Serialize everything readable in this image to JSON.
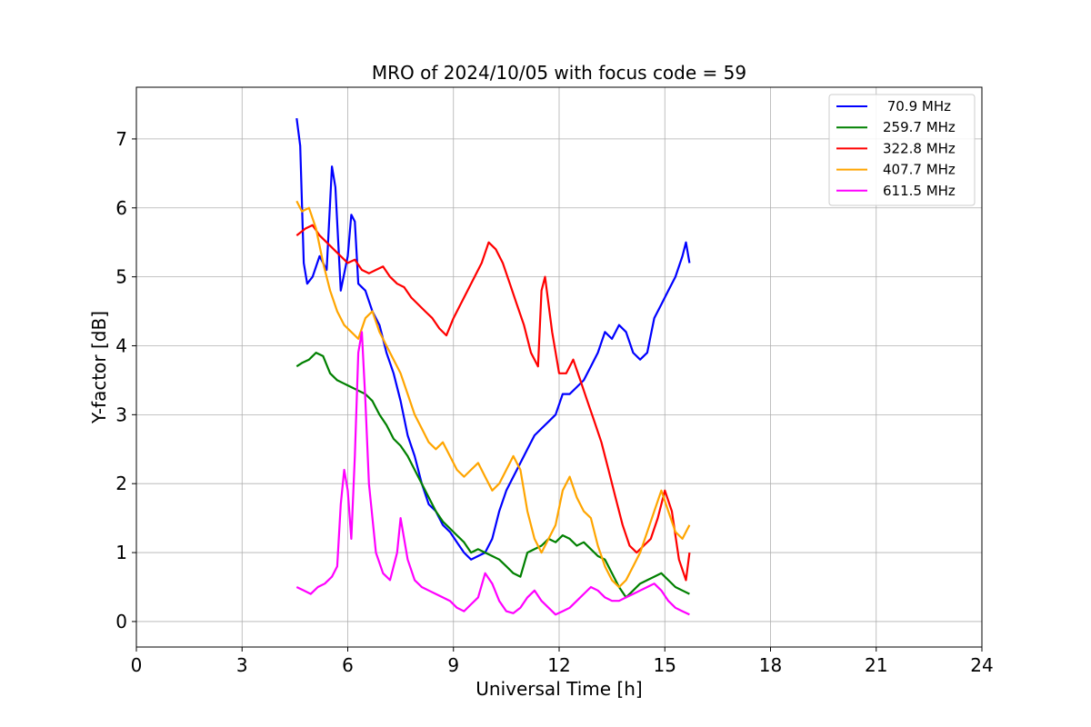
{
  "chart_data": {
    "type": "line",
    "title": "MRO of 2024/10/05 with focus code = 59",
    "xlabel": "Universal Time [h]",
    "ylabel": "Y-factor [dB]",
    "xlim": [
      0,
      24
    ],
    "ylim": [
      -0.37,
      7.75
    ],
    "xticks": [
      0,
      3,
      6,
      9,
      12,
      15,
      18,
      21,
      24
    ],
    "yticks": [
      0,
      1,
      2,
      3,
      4,
      5,
      6,
      7
    ],
    "grid": true,
    "legend_position": "top-right",
    "series": [
      {
        "name": " 70.9 MHz",
        "color": "#0000ff",
        "x": [
          4.55,
          4.65,
          4.75,
          4.85,
          5.0,
          5.2,
          5.4,
          5.55,
          5.65,
          5.8,
          6.0,
          6.1,
          6.2,
          6.3,
          6.5,
          6.7,
          6.9,
          7.1,
          7.3,
          7.5,
          7.7,
          7.9,
          8.1,
          8.3,
          8.5,
          8.7,
          8.9,
          9.1,
          9.3,
          9.5,
          9.7,
          9.9,
          10.1,
          10.3,
          10.5,
          10.7,
          10.9,
          11.1,
          11.3,
          11.5,
          11.7,
          11.9,
          12.1,
          12.3,
          12.5,
          12.7,
          12.9,
          13.1,
          13.3,
          13.5,
          13.7,
          13.9,
          14.1,
          14.3,
          14.5,
          14.7,
          14.9,
          15.1,
          15.3,
          15.5,
          15.6,
          15.7
        ],
        "y": [
          7.3,
          6.9,
          5.2,
          4.9,
          5.0,
          5.3,
          5.1,
          6.6,
          6.3,
          4.8,
          5.3,
          5.9,
          5.8,
          4.9,
          4.8,
          4.5,
          4.3,
          3.9,
          3.6,
          3.2,
          2.7,
          2.4,
          2.0,
          1.7,
          1.6,
          1.4,
          1.3,
          1.15,
          1.0,
          0.9,
          0.95,
          1.0,
          1.2,
          1.6,
          1.9,
          2.1,
          2.3,
          2.5,
          2.7,
          2.8,
          2.9,
          3.0,
          3.3,
          3.3,
          3.4,
          3.5,
          3.7,
          3.9,
          4.2,
          4.1,
          4.3,
          4.2,
          3.9,
          3.8,
          3.9,
          4.4,
          4.6,
          4.8,
          5.0,
          5.3,
          5.5,
          5.2
        ]
      },
      {
        "name": "259.7 MHz",
        "color": "#008000",
        "x": [
          4.55,
          4.7,
          4.9,
          5.1,
          5.3,
          5.5,
          5.7,
          5.9,
          6.1,
          6.3,
          6.5,
          6.7,
          6.9,
          7.1,
          7.3,
          7.5,
          7.7,
          7.9,
          8.1,
          8.3,
          8.5,
          8.7,
          8.9,
          9.1,
          9.3,
          9.5,
          9.7,
          9.9,
          10.1,
          10.3,
          10.5,
          10.7,
          10.9,
          11.1,
          11.3,
          11.5,
          11.7,
          11.9,
          12.1,
          12.3,
          12.5,
          12.7,
          12.9,
          13.1,
          13.3,
          13.5,
          13.7,
          13.9,
          14.1,
          14.3,
          14.5,
          14.7,
          14.9,
          15.1,
          15.3,
          15.5,
          15.7
        ],
        "y": [
          3.7,
          3.75,
          3.8,
          3.9,
          3.85,
          3.6,
          3.5,
          3.45,
          3.4,
          3.35,
          3.3,
          3.2,
          3.0,
          2.85,
          2.65,
          2.55,
          2.4,
          2.2,
          2.0,
          1.8,
          1.6,
          1.45,
          1.35,
          1.25,
          1.15,
          1.0,
          1.05,
          1.0,
          0.95,
          0.9,
          0.8,
          0.7,
          0.65,
          1.0,
          1.05,
          1.1,
          1.2,
          1.15,
          1.25,
          1.2,
          1.1,
          1.15,
          1.05,
          0.95,
          0.9,
          0.7,
          0.5,
          0.35,
          0.45,
          0.55,
          0.6,
          0.65,
          0.7,
          0.6,
          0.5,
          0.45,
          0.4
        ]
      },
      {
        "name": "322.8 MHz",
        "color": "#ff0000",
        "x": [
          4.55,
          4.8,
          5.0,
          5.2,
          5.4,
          5.6,
          5.8,
          6.0,
          6.2,
          6.4,
          6.6,
          6.8,
          7.0,
          7.2,
          7.4,
          7.6,
          7.8,
          8.0,
          8.2,
          8.4,
          8.6,
          8.8,
          9.0,
          9.2,
          9.4,
          9.6,
          9.8,
          10.0,
          10.2,
          10.4,
          10.6,
          10.8,
          11.0,
          11.2,
          11.4,
          11.5,
          11.6,
          11.8,
          12.0,
          12.2,
          12.4,
          12.6,
          12.8,
          13.0,
          13.2,
          13.4,
          13.6,
          13.8,
          14.0,
          14.2,
          14.4,
          14.6,
          14.8,
          15.0,
          15.2,
          15.4,
          15.6,
          15.7
        ],
        "y": [
          5.6,
          5.7,
          5.75,
          5.6,
          5.5,
          5.4,
          5.3,
          5.2,
          5.25,
          5.1,
          5.05,
          5.1,
          5.15,
          5.0,
          4.9,
          4.85,
          4.7,
          4.6,
          4.5,
          4.4,
          4.25,
          4.15,
          4.4,
          4.6,
          4.8,
          5.0,
          5.2,
          5.5,
          5.4,
          5.2,
          4.9,
          4.6,
          4.3,
          3.9,
          3.7,
          4.8,
          5.0,
          4.2,
          3.6,
          3.6,
          3.8,
          3.5,
          3.2,
          2.9,
          2.6,
          2.2,
          1.8,
          1.4,
          1.1,
          1.0,
          1.1,
          1.2,
          1.5,
          1.9,
          1.6,
          0.9,
          0.6,
          1.0
        ]
      },
      {
        "name": "407.7 MHz",
        "color": "#ffa500",
        "x": [
          4.55,
          4.7,
          4.9,
          5.1,
          5.3,
          5.5,
          5.7,
          5.9,
          6.1,
          6.3,
          6.5,
          6.7,
          6.9,
          7.1,
          7.3,
          7.5,
          7.7,
          7.9,
          8.1,
          8.3,
          8.5,
          8.7,
          8.9,
          9.1,
          9.3,
          9.5,
          9.7,
          9.9,
          10.1,
          10.3,
          10.5,
          10.7,
          10.9,
          11.1,
          11.3,
          11.5,
          11.7,
          11.9,
          12.1,
          12.3,
          12.5,
          12.7,
          12.9,
          13.1,
          13.3,
          13.5,
          13.7,
          13.9,
          14.1,
          14.3,
          14.5,
          14.7,
          14.9,
          15.1,
          15.3,
          15.5,
          15.7
        ],
        "y": [
          6.1,
          5.95,
          6.0,
          5.7,
          5.2,
          4.8,
          4.5,
          4.3,
          4.2,
          4.1,
          4.4,
          4.5,
          4.2,
          4.0,
          3.8,
          3.6,
          3.3,
          3.0,
          2.8,
          2.6,
          2.5,
          2.6,
          2.4,
          2.2,
          2.1,
          2.2,
          2.3,
          2.1,
          1.9,
          2.0,
          2.2,
          2.4,
          2.2,
          1.6,
          1.2,
          1.0,
          1.2,
          1.4,
          1.9,
          2.1,
          1.8,
          1.6,
          1.5,
          1.1,
          0.8,
          0.6,
          0.5,
          0.6,
          0.8,
          1.0,
          1.3,
          1.6,
          1.9,
          1.6,
          1.3,
          1.2,
          1.4
        ]
      },
      {
        "name": "611.5 MHz",
        "color": "#ff00ff",
        "x": [
          4.55,
          4.75,
          4.95,
          5.15,
          5.35,
          5.55,
          5.7,
          5.8,
          5.9,
          6.0,
          6.1,
          6.2,
          6.3,
          6.4,
          6.5,
          6.6,
          6.8,
          7.0,
          7.2,
          7.4,
          7.5,
          7.7,
          7.9,
          8.1,
          8.3,
          8.5,
          8.7,
          8.9,
          9.1,
          9.3,
          9.5,
          9.7,
          9.9,
          10.1,
          10.3,
          10.5,
          10.7,
          10.9,
          11.1,
          11.3,
          11.5,
          11.7,
          11.9,
          12.1,
          12.3,
          12.5,
          12.7,
          12.9,
          13.1,
          13.3,
          13.5,
          13.7,
          13.9,
          14.1,
          14.3,
          14.5,
          14.7,
          14.9,
          15.1,
          15.3,
          15.5,
          15.7
        ],
        "y": [
          0.5,
          0.45,
          0.4,
          0.5,
          0.55,
          0.65,
          0.8,
          1.7,
          2.2,
          1.9,
          1.2,
          2.4,
          3.9,
          4.2,
          3.2,
          2.0,
          1.0,
          0.7,
          0.6,
          1.0,
          1.5,
          0.9,
          0.6,
          0.5,
          0.45,
          0.4,
          0.35,
          0.3,
          0.2,
          0.15,
          0.25,
          0.35,
          0.7,
          0.55,
          0.3,
          0.15,
          0.12,
          0.2,
          0.35,
          0.45,
          0.3,
          0.2,
          0.1,
          0.15,
          0.2,
          0.3,
          0.4,
          0.5,
          0.45,
          0.35,
          0.3,
          0.3,
          0.35,
          0.4,
          0.45,
          0.5,
          0.55,
          0.45,
          0.3,
          0.2,
          0.15,
          0.1
        ]
      }
    ]
  }
}
